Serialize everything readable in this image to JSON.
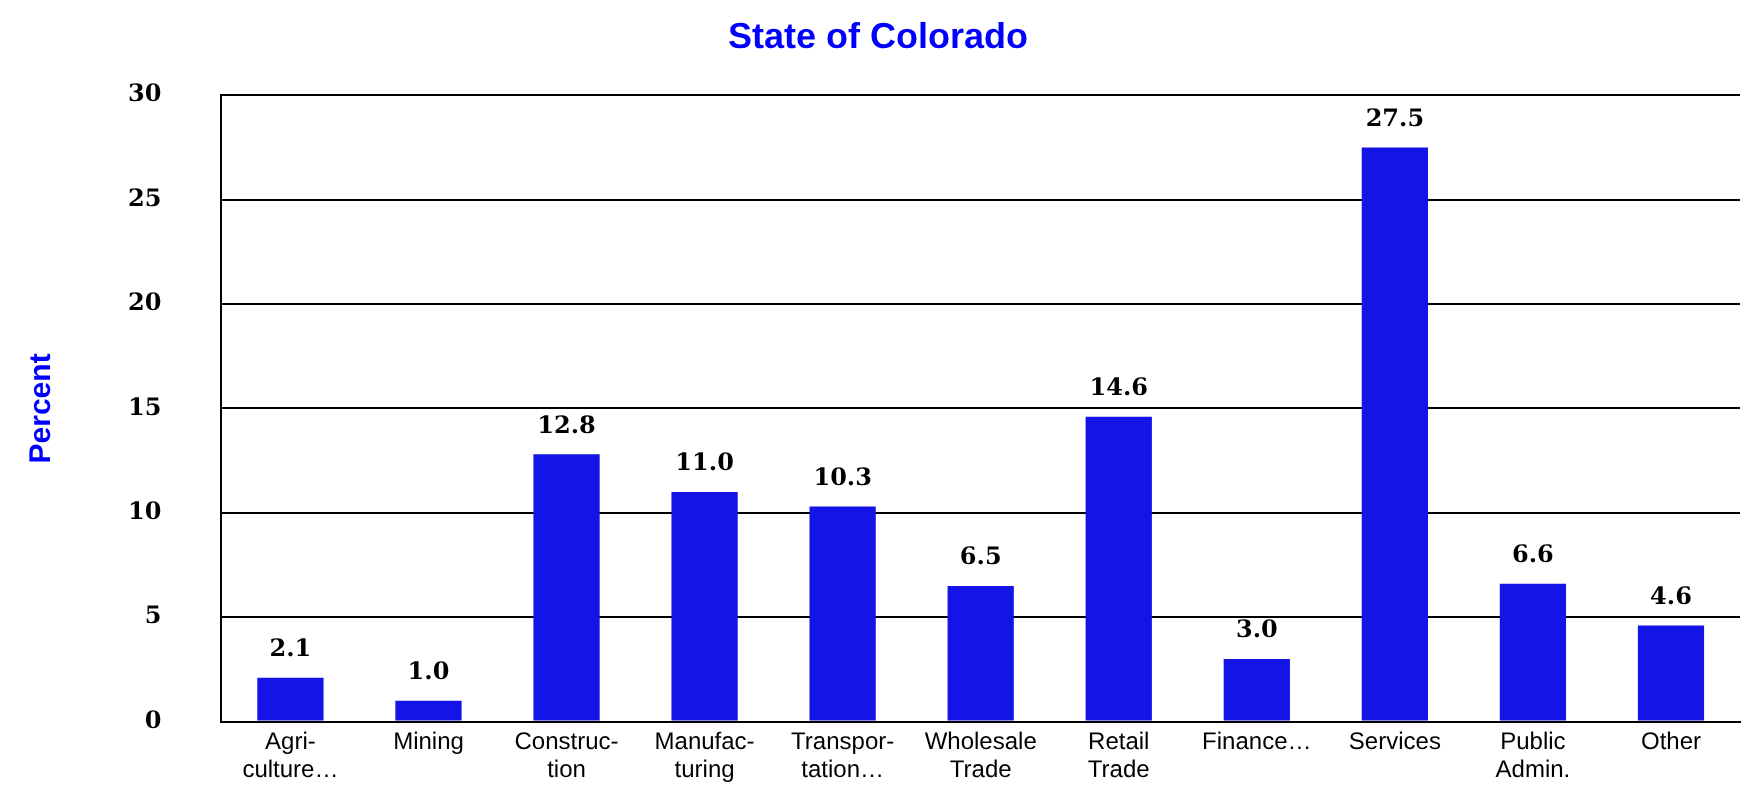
{
  "chart_data": {
    "type": "bar",
    "title": "State of Colorado",
    "ylabel": "Percent",
    "categories": [
      "Agri-\nculture…",
      "Mining",
      "Construc-\ntion",
      "Manufac-\nturing",
      "Transpor-\ntation…",
      "Wholesale\nTrade",
      "Retail\nTrade",
      "Finance…",
      "Services",
      "Public\nAdmin.",
      "Other"
    ],
    "values": [
      2.1,
      1.0,
      12.8,
      11.0,
      10.3,
      6.5,
      14.6,
      3.0,
      27.5,
      6.6,
      4.6
    ],
    "color": "#1414e6",
    "ylim": [
      0,
      30
    ],
    "yticks": [
      0,
      5,
      10,
      15,
      20,
      25,
      30
    ],
    "value_labels": [
      "2.1",
      "1.0",
      "12.8",
      "11.0",
      "10.3",
      "6.5",
      "14.6",
      "3.0",
      "27.5",
      "6.6",
      "4.6"
    ],
    "grid": "y"
  }
}
